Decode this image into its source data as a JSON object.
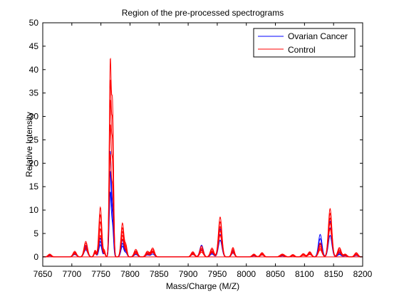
{
  "chart_data": {
    "type": "line",
    "title": "Region of the pre-processed spectrograms",
    "xlabel": "Mass/Charge (M/Z)",
    "ylabel": "Relative Intensity",
    "xlim": [
      7650,
      8200
    ],
    "ylim": [
      -2,
      50
    ],
    "xticks": [
      7650,
      7700,
      7750,
      7800,
      7850,
      7900,
      7950,
      8000,
      8050,
      8100,
      8150,
      8200
    ],
    "yticks": [
      0,
      5,
      10,
      15,
      20,
      25,
      30,
      35,
      40,
      45,
      50
    ],
    "grid": false,
    "legend": "top-right",
    "baseline_x": [
      7650,
      8200
    ],
    "series": [
      {
        "name": "Ovarian Cancer",
        "color": "#0000ff",
        "peaks_x": [
          7662,
          7705,
          7724,
          7740,
          7749,
          7756,
          7766,
          7770,
          7787,
          7793,
          7810,
          7830,
          7839,
          7908,
          7923,
          7941,
          7955,
          7977,
          8013,
          8027,
          8062,
          8080,
          8098,
          8109,
          8127,
          8144,
          8160,
          8170,
          8189
        ],
        "widths": [
          3,
          3,
          3,
          2,
          2.5,
          1.5,
          1.7,
          1.7,
          2.5,
          2,
          3,
          3,
          3,
          3,
          3,
          3,
          3,
          2.5,
          3,
          3,
          4,
          3,
          3,
          3,
          3,
          3,
          3,
          3,
          3
        ],
        "traces": [
          [
            0.4,
            0.9,
            2.3,
            1.0,
            4.0,
            1.0,
            22.0,
            10.0,
            3.6,
            1.3,
            1.0,
            0.6,
            1.0,
            0.8,
            2.5,
            1.0,
            6.0,
            1.3,
            0.4,
            0.6,
            0.3,
            0.3,
            0.6,
            1.0,
            4.8,
            7.6,
            1.0,
            0.4,
            0.5
          ],
          [
            0.3,
            0.7,
            1.9,
            0.9,
            3.3,
            0.9,
            17.8,
            8.1,
            2.9,
            1.0,
            0.7,
            0.5,
            0.9,
            0.7,
            1.9,
            0.8,
            4.8,
            1.1,
            0.3,
            0.5,
            0.2,
            0.2,
            0.5,
            0.8,
            3.9,
            6.2,
            0.7,
            0.3,
            0.4
          ],
          [
            0.2,
            0.5,
            1.5,
            0.7,
            2.6,
            0.7,
            13.5,
            6.3,
            2.3,
            0.8,
            0.5,
            0.4,
            0.6,
            0.5,
            1.5,
            0.6,
            3.6,
            0.8,
            0.2,
            0.4,
            0.2,
            0.2,
            0.4,
            0.6,
            2.8,
            4.6,
            0.5,
            0.2,
            0.3
          ]
        ]
      },
      {
        "name": "Control",
        "color": "#ff0000",
        "peaks_x": [
          7662,
          7705,
          7724,
          7740,
          7749,
          7756,
          7766,
          7770,
          7787,
          7793,
          7810,
          7830,
          7839,
          7908,
          7923,
          7941,
          7955,
          7977,
          8013,
          8027,
          8062,
          8080,
          8098,
          8109,
          8127,
          8144,
          8160,
          8170,
          8189
        ],
        "widths": [
          3,
          3,
          3,
          2,
          2.5,
          1.5,
          1.7,
          1.7,
          2.5,
          2,
          3,
          3,
          3,
          3,
          3,
          3,
          3,
          2.5,
          3,
          3,
          4,
          3,
          3,
          3,
          3,
          3,
          3,
          3,
          3
        ],
        "traces": [
          [
            0.6,
            1.2,
            3.3,
            1.4,
            10.6,
            1.3,
            40.3,
            31.0,
            7.2,
            2.4,
            1.6,
            1.2,
            1.9,
            1.1,
            2.3,
            1.9,
            8.5,
            2.0,
            0.6,
            0.9,
            0.6,
            0.5,
            0.7,
            1.1,
            3.0,
            10.3,
            2.0,
            0.6,
            0.9
          ],
          [
            0.5,
            1.0,
            2.9,
            1.2,
            9.0,
            1.1,
            36.0,
            27.0,
            6.2,
            2.0,
            1.3,
            1.0,
            1.6,
            0.9,
            1.9,
            1.6,
            7.5,
            1.7,
            0.5,
            0.8,
            0.5,
            0.4,
            0.6,
            0.9,
            2.6,
            9.3,
            1.7,
            0.5,
            0.8
          ],
          [
            0.4,
            0.9,
            2.5,
            1.0,
            7.5,
            0.9,
            32.0,
            23.0,
            5.4,
            1.7,
            1.1,
            0.8,
            1.3,
            0.8,
            1.6,
            1.3,
            6.5,
            1.4,
            0.4,
            0.6,
            0.4,
            0.3,
            0.5,
            0.8,
            2.2,
            8.3,
            1.4,
            0.4,
            0.6
          ],
          [
            0.3,
            0.7,
            2.1,
            0.8,
            6.0,
            0.8,
            27.0,
            19.0,
            4.6,
            1.4,
            0.9,
            0.7,
            1.1,
            0.6,
            1.3,
            1.1,
            5.6,
            1.1,
            0.3,
            0.5,
            0.3,
            0.3,
            0.4,
            0.6,
            1.8,
            7.2,
            1.2,
            0.3,
            0.5
          ],
          [
            0.3,
            0.6,
            1.7,
            0.7,
            4.6,
            0.6,
            21.0,
            14.0,
            3.8,
            1.1,
            0.7,
            0.5,
            0.9,
            0.5,
            1.0,
            0.9,
            4.6,
            0.9,
            0.3,
            0.4,
            0.3,
            0.2,
            0.3,
            0.5,
            1.5,
            6.0,
            0.9,
            0.3,
            0.4
          ]
        ]
      }
    ]
  }
}
